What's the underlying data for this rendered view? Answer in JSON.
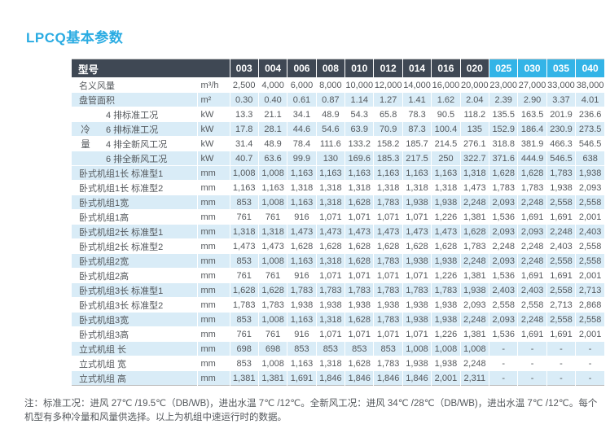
{
  "title": "LPCQ基本参数",
  "colors": {
    "accent": "#29abe2",
    "header_dark": "#3f4854",
    "header_blue": "#33b4e7",
    "stripe": "#d9ecf7",
    "text": "#54585c"
  },
  "table": {
    "header": {
      "model_label": "型号",
      "models": [
        "003",
        "004",
        "006",
        "008",
        "010",
        "012",
        "014",
        "016",
        "020",
        "025",
        "030",
        "035",
        "040"
      ],
      "highlight_models": [
        "025",
        "030",
        "035",
        "040"
      ]
    },
    "rows": [
      {
        "label": "名义风量",
        "unit": "m³/h",
        "values": [
          "2,500",
          "4,000",
          "6,000",
          "8,000",
          "10,000",
          "12,000",
          "14,000",
          "16,000",
          "20,000",
          "23,000",
          "27,000",
          "33,000",
          "38,000"
        ]
      },
      {
        "label": "盘管面积",
        "unit": "m²",
        "values": [
          "0.30",
          "0.40",
          "0.61",
          "0.87",
          "1.14",
          "1.27",
          "1.41",
          "1.62",
          "2.04",
          "2.39",
          "2.90",
          "3.37",
          "4.01"
        ]
      },
      {
        "label": "4 排标准工况",
        "unit": "kW",
        "side": "",
        "values": [
          "13.3",
          "21.1",
          "34.1",
          "48.9",
          "54.3",
          "65.8",
          "78.3",
          "90.5",
          "118.2",
          "135.5",
          "163.5",
          "201.9",
          "236.6"
        ]
      },
      {
        "label": "6 排标准工况",
        "unit": "kW",
        "side": "冷",
        "values": [
          "17.8",
          "28.1",
          "44.6",
          "54.6",
          "63.9",
          "70.9",
          "87.3",
          "100.4",
          "135",
          "152.9",
          "186.4",
          "230.9",
          "273.5"
        ]
      },
      {
        "label": "4 排全新风工况",
        "unit": "kW",
        "side": "量",
        "values": [
          "31.4",
          "48.9",
          "78.4",
          "111.6",
          "133.2",
          "158.2",
          "185.7",
          "214.5",
          "276.1",
          "318.8",
          "381.9",
          "466.3",
          "546.5"
        ]
      },
      {
        "label": "6 排全新风工况",
        "unit": "kW",
        "side": "",
        "values": [
          "40.7",
          "63.6",
          "99.9",
          "130",
          "169.6",
          "185.3",
          "217.5",
          "250",
          "322.7",
          "371.6",
          "444.9",
          "546.5",
          "638"
        ]
      },
      {
        "label": "卧式机组1长 标准型1",
        "unit": "mm",
        "values": [
          "1,008",
          "1,008",
          "1,163",
          "1,163",
          "1,163",
          "1,163",
          "1,163",
          "1,163",
          "1,318",
          "1,628",
          "1,628",
          "1,783",
          "1,938"
        ]
      },
      {
        "label": "卧式机组1长 标准型2",
        "unit": "mm",
        "values": [
          "1,163",
          "1,163",
          "1,318",
          "1,318",
          "1,318",
          "1,318",
          "1,318",
          "1,318",
          "1,473",
          "1,783",
          "1,783",
          "1,938",
          "2,093"
        ]
      },
      {
        "label": "卧式机组1宽",
        "unit": "mm",
        "values": [
          "853",
          "1,008",
          "1,163",
          "1,318",
          "1,628",
          "1,783",
          "1,938",
          "1,938",
          "2,248",
          "2,093",
          "2,248",
          "2,558",
          "2,558"
        ]
      },
      {
        "label": "卧式机组1高",
        "unit": "mm",
        "values": [
          "761",
          "761",
          "916",
          "1,071",
          "1,071",
          "1,071",
          "1,071",
          "1,226",
          "1,381",
          "1,536",
          "1,691",
          "1,691",
          "2,001"
        ]
      },
      {
        "label": "卧式机组2长 标准型1",
        "unit": "mm",
        "values": [
          "1,318",
          "1,318",
          "1,473",
          "1,473",
          "1,473",
          "1,473",
          "1,473",
          "1,473",
          "1,628",
          "2,093",
          "2,093",
          "2,248",
          "2,403"
        ]
      },
      {
        "label": "卧式机组2长 标准型2",
        "unit": "mm",
        "values": [
          "1,473",
          "1,473",
          "1,628",
          "1,628",
          "1,628",
          "1,628",
          "1,628",
          "1,628",
          "1,783",
          "2,248",
          "2,248",
          "2,403",
          "2,558"
        ]
      },
      {
        "label": "卧式机组2宽",
        "unit": "mm",
        "values": [
          "853",
          "1,008",
          "1,163",
          "1,318",
          "1,628",
          "1,783",
          "1,938",
          "1,938",
          "2,248",
          "2,093",
          "2,248",
          "2,558",
          "2,558"
        ]
      },
      {
        "label": "卧式机组2高",
        "unit": "mm",
        "values": [
          "761",
          "761",
          "916",
          "1,071",
          "1,071",
          "1,071",
          "1,071",
          "1,226",
          "1,381",
          "1,536",
          "1,691",
          "1,691",
          "2,001"
        ]
      },
      {
        "label": "卧式机组3长 标准型1",
        "unit": "mm",
        "values": [
          "1,628",
          "1,628",
          "1,783",
          "1,783",
          "1,783",
          "1,783",
          "1,783",
          "1,783",
          "1,938",
          "2,403",
          "2,403",
          "2,558",
          "2,713"
        ]
      },
      {
        "label": "卧式机组3长 标准型2",
        "unit": "mm",
        "values": [
          "1,783",
          "1,783",
          "1,938",
          "1,938",
          "1,938",
          "1,938",
          "1,938",
          "1,938",
          "2,093",
          "2,558",
          "2,558",
          "2,713",
          "2,868"
        ]
      },
      {
        "label": "卧式机组3宽",
        "unit": "mm",
        "values": [
          "853",
          "1,008",
          "1,163",
          "1,318",
          "1,628",
          "1,783",
          "1,938",
          "1,938",
          "2,248",
          "2,093",
          "2,248",
          "2,558",
          "2,558"
        ]
      },
      {
        "label": "卧式机组3高",
        "unit": "mm",
        "values": [
          "761",
          "761",
          "916",
          "1,071",
          "1,071",
          "1,071",
          "1,071",
          "1,226",
          "1,381",
          "1,536",
          "1,691",
          "1,691",
          "2,001"
        ]
      },
      {
        "label": "立式机组 长",
        "unit": "mm",
        "values": [
          "698",
          "698",
          "853",
          "853",
          "853",
          "853",
          "1,008",
          "1,008",
          "1,008",
          "-",
          "-",
          "-",
          "-"
        ]
      },
      {
        "label": "立式机组 宽",
        "unit": "mm",
        "values": [
          "853",
          "1,008",
          "1,163",
          "1,318",
          "1,628",
          "1,783",
          "1,938",
          "1,938",
          "2,248",
          "-",
          "-",
          "-",
          "-"
        ]
      },
      {
        "label": "立式机组 高",
        "unit": "mm",
        "values": [
          "1,381",
          "1,381",
          "1,691",
          "1,846",
          "1,846",
          "1,846",
          "1,846",
          "2,001",
          "2,311",
          "-",
          "-",
          "-",
          "-"
        ]
      }
    ]
  },
  "footnote": "注：标准工况：进风 27℃ /19.5℃（DB/WB)，进出水温 7℃ /12℃。全新风工况：进风 34℃ /28℃（DB/WB)，进出水温 7℃ /12℃。每个机型有多种冷量和风量供选择。以上为机组中速运行时的数据。"
}
